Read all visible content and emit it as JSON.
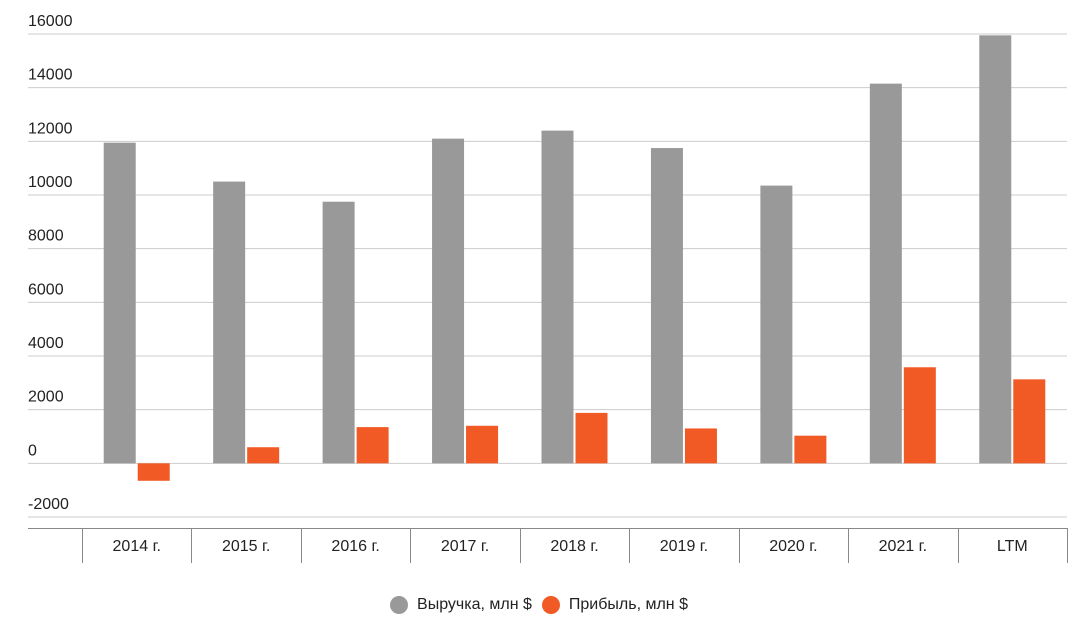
{
  "chart_data": {
    "type": "bar",
    "title": "",
    "xlabel": "",
    "ylabel": "",
    "ylim": [
      -2000,
      16000
    ],
    "yticks": [
      -2000,
      0,
      2000,
      4000,
      6000,
      8000,
      10000,
      12000,
      14000,
      16000
    ],
    "grid": true,
    "legend_position": "bottom-center",
    "categories": [
      "2014 г.",
      "2015 г.",
      "2016 г.",
      "2017 г.",
      "2018 г.",
      "2019 г.",
      "2020 г.",
      "2021 г.",
      "LTM"
    ],
    "series": [
      {
        "name": "Выручка, млн $",
        "color": "#999999",
        "values": [
          11950,
          10500,
          9750,
          12100,
          12400,
          11750,
          10350,
          14150,
          15950
        ]
      },
      {
        "name": "Прибыль, млн $",
        "color": "#f15a24",
        "values": [
          -650,
          600,
          1350,
          1400,
          1880,
          1300,
          1030,
          3580,
          3130
        ]
      }
    ]
  }
}
